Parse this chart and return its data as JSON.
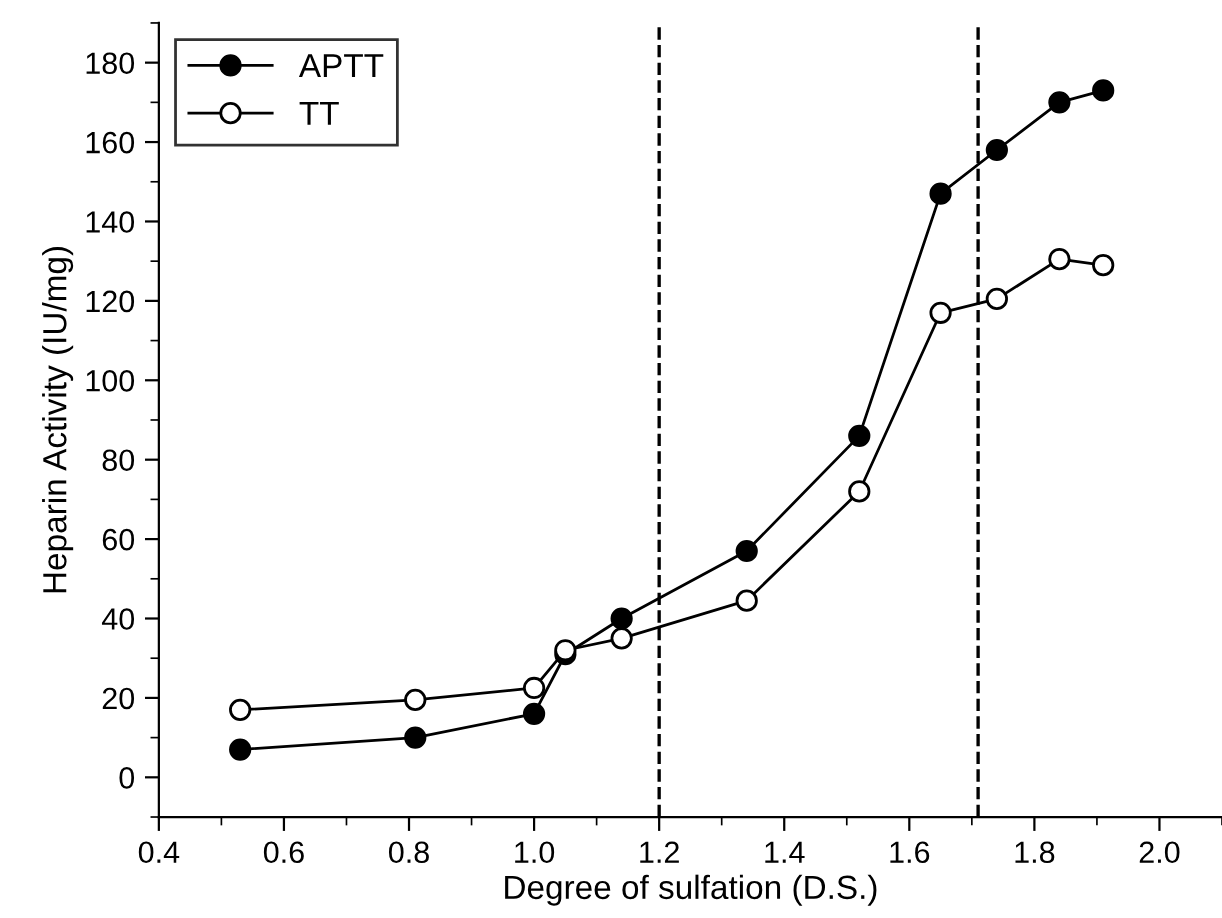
{
  "chart_data": {
    "type": "line",
    "xlabel": "Degree of sulfation (D.S.)",
    "ylabel": "Heparin Activity (IU/mg)",
    "xlim": [
      0.4,
      2.1
    ],
    "xticks": [
      {
        "value": 0.4,
        "label": "0.4"
      },
      {
        "value": 0.6,
        "label": "0.6"
      },
      {
        "value": 0.8,
        "label": "0.8"
      },
      {
        "value": 1.0,
        "label": "1.0"
      },
      {
        "value": 1.2,
        "label": "1.2"
      },
      {
        "value": 1.4,
        "label": "1.4"
      },
      {
        "value": 1.6,
        "label": "1.6"
      },
      {
        "value": 1.8,
        "label": "1.8"
      },
      {
        "value": 2.0,
        "label": "2.0"
      }
    ],
    "ylim": [
      -10,
      190
    ],
    "yticks": [
      0,
      20,
      40,
      60,
      80,
      100,
      120,
      140,
      160,
      180
    ],
    "x": [
      0.53,
      0.81,
      1.0,
      1.05,
      1.14,
      1.34,
      1.52,
      1.65,
      1.74,
      1.84,
      1.91
    ],
    "series": [
      {
        "name": "APTT",
        "color": "#000000",
        "values": [
          7,
          10,
          16,
          31,
          40,
          57,
          86,
          147,
          158,
          170,
          173
        ]
      },
      {
        "name": "TT",
        "color": "#000000",
        "values": [
          17,
          19.5,
          22.5,
          32,
          35,
          44.5,
          72,
          117,
          120.5,
          130.5,
          129
        ]
      }
    ],
    "ref_lines": [
      {
        "axis": "x",
        "value": 1.2,
        "label": null,
        "line_style": "dashed"
      },
      {
        "axis": "x",
        "value": 1.71,
        "label": null,
        "line_style": "dashed"
      }
    ],
    "marker": "circle",
    "line_style": "solid",
    "grid": false,
    "legend": "top left"
  }
}
